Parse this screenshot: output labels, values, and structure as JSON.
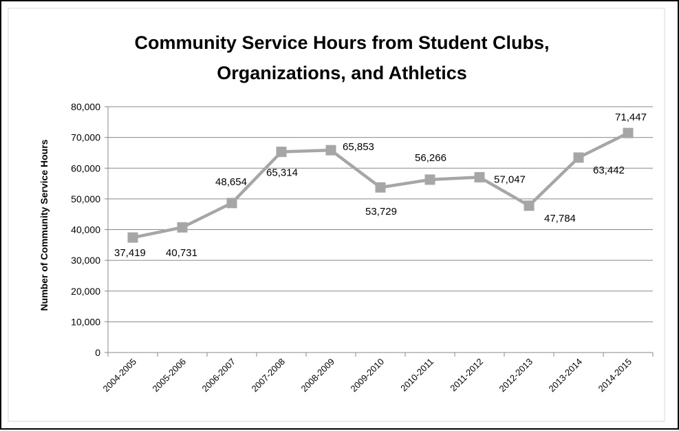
{
  "chart_data": {
    "type": "line",
    "title_lines": [
      "Community Service Hours from Student Clubs,",
      "Organizations, and Athletics"
    ],
    "xlabel": "",
    "ylabel": "Number of Community Service Hours",
    "categories": [
      "2004-2005",
      "2005-2006",
      "2006-2007",
      "2007-2008",
      "2008-2009",
      "2009-2010",
      "2010-2011",
      "2011-2012",
      "2012-2013",
      "2013-2014",
      "2014-2015"
    ],
    "series": [
      {
        "values": [
          37419,
          40731,
          48654,
          65314,
          65853,
          53729,
          56266,
          57047,
          47784,
          63442,
          71447
        ],
        "labels": [
          "37,419",
          "40,731",
          "48,654",
          "65,314",
          "65,853",
          "53,729",
          "56,266",
          "57,047",
          "47,784",
          "63,442",
          "71,447"
        ],
        "color": "#a6a6a6"
      }
    ],
    "ylim": [
      0,
      80000
    ],
    "yticks": [
      0,
      10000,
      20000,
      30000,
      40000,
      50000,
      60000,
      70000,
      80000
    ],
    "ytick_labels": [
      "0",
      "10,000",
      "20,000",
      "30,000",
      "40,000",
      "50,000",
      "60,000",
      "70,000",
      "80,000"
    ],
    "grid": true,
    "legend": "none",
    "marker": "square"
  }
}
